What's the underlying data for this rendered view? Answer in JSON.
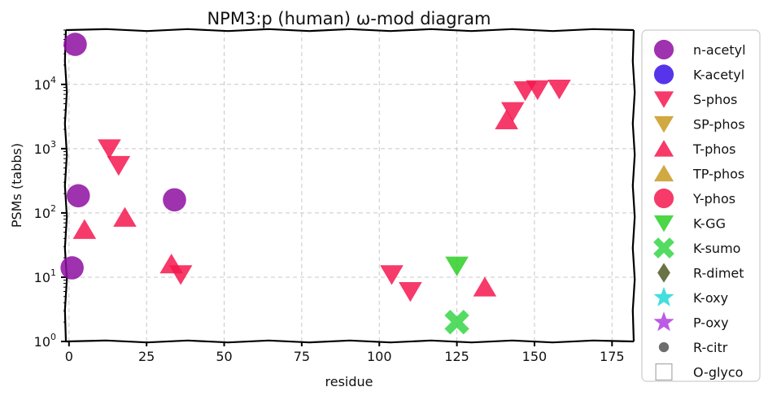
{
  "chart_data": {
    "type": "scatter",
    "title": "NPM3:p (human) ω-mod diagram",
    "xlabel": "residue",
    "ylabel": "PSMs (tabbs)",
    "xlim": [
      -1,
      182
    ],
    "ylim": [
      1,
      70000
    ],
    "y_scale": "log",
    "grid": true,
    "legend_position": "outside-right",
    "x_ticks": [
      {
        "value": 0,
        "label": "0"
      },
      {
        "value": 25,
        "label": "25"
      },
      {
        "value": 50,
        "label": "50"
      },
      {
        "value": 75,
        "label": "75"
      },
      {
        "value": 100,
        "label": "100"
      },
      {
        "value": 125,
        "label": "125"
      },
      {
        "value": 150,
        "label": "150"
      },
      {
        "value": 175,
        "label": "175"
      }
    ],
    "y_ticks": [
      {
        "value": 1,
        "base": "10",
        "exp": "0"
      },
      {
        "value": 10,
        "base": "10",
        "exp": "1"
      },
      {
        "value": 100,
        "base": "10",
        "exp": "2"
      },
      {
        "value": 1000,
        "base": "10",
        "exp": "3"
      },
      {
        "value": 10000,
        "base": "10",
        "exp": "4"
      }
    ],
    "series": [
      {
        "name": "n-acetyl",
        "marker": "circle",
        "color": "#8e0ea1",
        "points": [
          [
            2,
            42000
          ],
          [
            3,
            185
          ],
          [
            34,
            160
          ],
          [
            1,
            14
          ]
        ]
      },
      {
        "name": "K-acetyl",
        "marker": "circle",
        "color": "#3a10e6",
        "points": []
      },
      {
        "name": "S-phos",
        "marker": "triangle-down",
        "color": "#f5174f",
        "points": [
          [
            13,
            1000
          ],
          [
            16,
            550
          ],
          [
            36,
            11
          ],
          [
            104,
            11
          ],
          [
            110,
            6
          ],
          [
            143,
            3800
          ],
          [
            147,
            8000
          ],
          [
            151,
            8300
          ],
          [
            158,
            8500
          ]
        ]
      },
      {
        "name": "SP-phos",
        "marker": "triangle-down",
        "color": "#c99a21",
        "points": []
      },
      {
        "name": "T-phos",
        "marker": "triangle-up",
        "color": "#f5174f",
        "points": [
          [
            5,
            55
          ],
          [
            18,
            85
          ],
          [
            33,
            16
          ],
          [
            134,
            7
          ],
          [
            141,
            2800
          ]
        ]
      },
      {
        "name": "TP-phos",
        "marker": "triangle-up",
        "color": "#c99a21",
        "points": []
      },
      {
        "name": "Y-phos",
        "marker": "circle",
        "color": "#f5174f",
        "points": []
      },
      {
        "name": "K-GG",
        "marker": "triangle-down",
        "color": "#2ecf27",
        "points": [
          [
            125,
            15
          ]
        ]
      },
      {
        "name": "K-sumo",
        "marker": "x",
        "color": "#36d646",
        "points": [
          [
            125,
            2
          ]
        ]
      },
      {
        "name": "R-dimet",
        "marker": "diamond",
        "color": "#4f5a26",
        "points": []
      },
      {
        "name": "K-oxy",
        "marker": "star",
        "color": "#22d8d8",
        "points": []
      },
      {
        "name": "P-oxy",
        "marker": "star",
        "color": "#b03ee0",
        "points": []
      },
      {
        "name": "R-citr",
        "marker": "dot",
        "color": "#555555",
        "points": []
      },
      {
        "name": "O-glyco",
        "marker": "square-open",
        "color": "#aaaaaa",
        "points": []
      }
    ]
  }
}
